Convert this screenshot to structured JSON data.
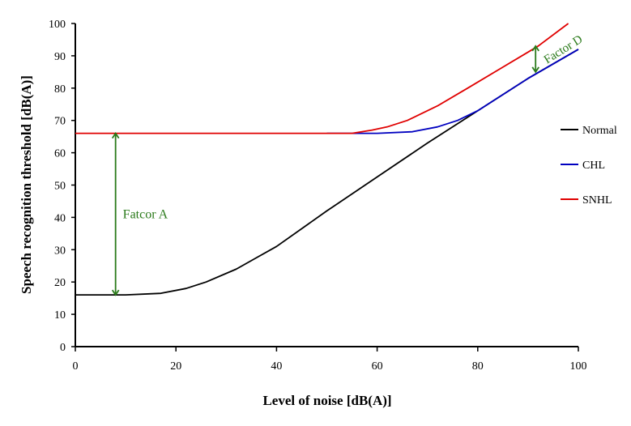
{
  "chart_data": {
    "type": "line",
    "xlabel": "Level of noise [dB(A)]",
    "ylabel": "Speech recognition threshold [dB(A)]",
    "xlim": [
      0,
      100
    ],
    "ylim": [
      0,
      100
    ],
    "xticks": [
      0,
      20,
      40,
      60,
      80,
      100
    ],
    "yticks": [
      0,
      10,
      20,
      30,
      40,
      50,
      60,
      70,
      80,
      90,
      100
    ],
    "grid": false,
    "legend_position": "right",
    "series": [
      {
        "name": "Normal",
        "color": "#000000",
        "x": [
          0,
          10,
          17,
          22,
          26,
          32,
          36,
          40,
          50,
          60,
          70,
          80,
          90,
          100
        ],
        "y": [
          16,
          16,
          16.5,
          18,
          20,
          24,
          27.5,
          31,
          42,
          52.5,
          63,
          73,
          83,
          92
        ]
      },
      {
        "name": "CHL",
        "color": "#0000c0",
        "x": [
          50,
          60,
          67,
          72,
          76,
          80,
          90,
          100
        ],
        "y": [
          66,
          66,
          66.5,
          68,
          70,
          73,
          83,
          92
        ]
      },
      {
        "name": "SNHL",
        "color": "#e00000",
        "x": [
          0,
          55,
          59,
          62,
          66,
          72,
          78,
          85,
          92,
          98
        ],
        "y": [
          66,
          66,
          67,
          68,
          70,
          74.5,
          80,
          86.5,
          93,
          100
        ]
      }
    ],
    "annotations": [
      {
        "text": "Fatcor A",
        "color": "#2a7a1a",
        "arrow_x": 8,
        "from_y": 16,
        "to_y": 66
      },
      {
        "text": "Factor D",
        "color": "#2a7a1a",
        "arrow_x": 91.5,
        "from_y": 93,
        "to_y": 85
      }
    ]
  }
}
